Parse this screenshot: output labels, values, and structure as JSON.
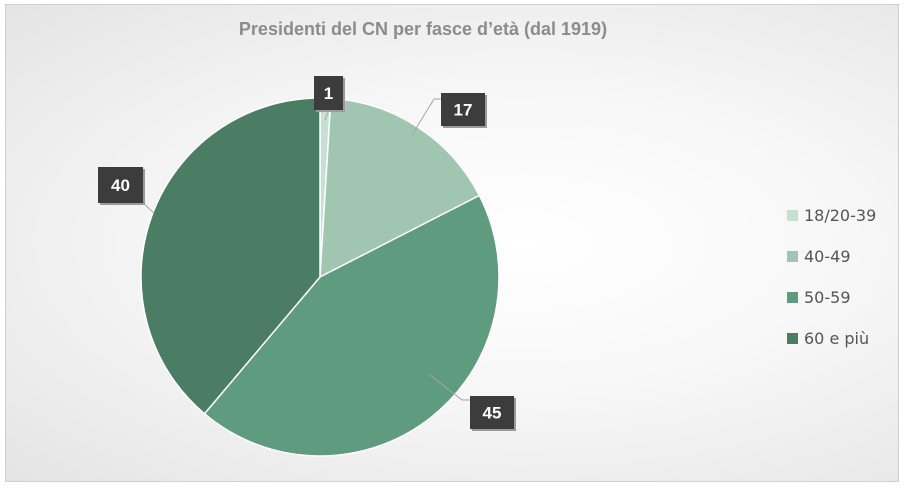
{
  "chart_data": {
    "type": "pie",
    "title": "Presidenti del CN per fasce d’età (dal 1919)",
    "categories": [
      "18/20-39",
      "40-49",
      "50-59",
      "60 e più"
    ],
    "values": [
      1,
      17,
      45,
      40
    ],
    "data_labels": [
      "1",
      "17",
      "45",
      "40"
    ],
    "colors": [
      "#c6e0d4",
      "#a0c6b2",
      "#5f9b7e",
      "#4a7d64"
    ],
    "legend_position": "right",
    "start_angle": "12 o'clock, clockwise"
  }
}
